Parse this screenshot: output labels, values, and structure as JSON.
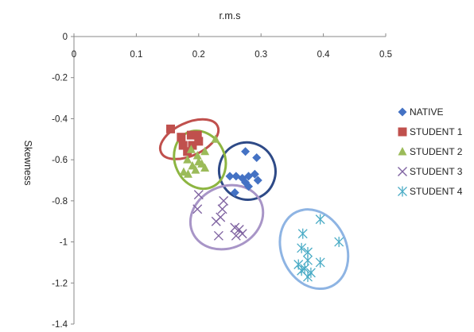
{
  "chart_data": {
    "type": "scatter",
    "title": "",
    "xlabel": "r.m.s",
    "ylabel": "Skewness",
    "xlim": [
      0,
      0.5
    ],
    "ylim": [
      -1.4,
      0
    ],
    "x_ticks": [
      "0",
      "0.1",
      "0.2",
      "0.3",
      "0.4",
      "0.5"
    ],
    "y_ticks": [
      "0",
      "-0.2",
      "-0.4",
      "-0.6",
      "-0.8",
      "-1",
      "-1.2",
      "-1.4"
    ],
    "x_axis_position": "top",
    "grid": false,
    "legend_position": "right",
    "series": [
      {
        "name": "NATIVE",
        "marker": "diamond",
        "color": "#4472C4",
        "points": [
          [
            0.275,
            -0.56
          ],
          [
            0.293,
            -0.59
          ],
          [
            0.25,
            -0.68
          ],
          [
            0.26,
            -0.68
          ],
          [
            0.27,
            -0.69
          ],
          [
            0.28,
            -0.68
          ],
          [
            0.29,
            -0.67
          ],
          [
            0.295,
            -0.7
          ],
          [
            0.275,
            -0.71
          ],
          [
            0.28,
            -0.73
          ],
          [
            0.258,
            -0.76
          ]
        ]
      },
      {
        "name": "STUDENT 1",
        "marker": "square",
        "color": "#C0504D",
        "points": [
          [
            0.155,
            -0.45
          ],
          [
            0.172,
            -0.49
          ],
          [
            0.188,
            -0.48
          ],
          [
            0.198,
            -0.48
          ],
          [
            0.175,
            -0.53
          ],
          [
            0.19,
            -0.53
          ],
          [
            0.182,
            -0.56
          ],
          [
            0.2,
            -0.51
          ]
        ]
      },
      {
        "name": "STUDENT 2",
        "marker": "triangle",
        "color": "#9BBB59",
        "points": [
          [
            0.227,
            -0.5
          ],
          [
            0.188,
            -0.55
          ],
          [
            0.198,
            -0.58
          ],
          [
            0.21,
            -0.56
          ],
          [
            0.182,
            -0.6
          ],
          [
            0.2,
            -0.61
          ],
          [
            0.19,
            -0.63
          ],
          [
            0.205,
            -0.62
          ],
          [
            0.176,
            -0.66
          ],
          [
            0.21,
            -0.64
          ],
          [
            0.183,
            -0.67
          ],
          [
            0.195,
            -0.65
          ]
        ]
      },
      {
        "name": "STUDENT 3",
        "marker": "x",
        "color": "#8064A2",
        "points": [
          [
            0.2,
            -0.77
          ],
          [
            0.24,
            -0.8
          ],
          [
            0.198,
            -0.84
          ],
          [
            0.238,
            -0.84
          ],
          [
            0.235,
            -0.88
          ],
          [
            0.228,
            -0.9
          ],
          [
            0.258,
            -0.93
          ],
          [
            0.265,
            -0.94
          ],
          [
            0.27,
            -0.96
          ],
          [
            0.232,
            -0.97
          ],
          [
            0.26,
            -0.97
          ]
        ]
      },
      {
        "name": "STUDENT 4",
        "marker": "star",
        "color": "#4BACC6",
        "points": [
          [
            0.395,
            -0.89
          ],
          [
            0.367,
            -0.96
          ],
          [
            0.425,
            -1.0
          ],
          [
            0.365,
            -1.03
          ],
          [
            0.375,
            -1.05
          ],
          [
            0.375,
            -1.09
          ],
          [
            0.36,
            -1.11
          ],
          [
            0.395,
            -1.1
          ],
          [
            0.37,
            -1.13
          ],
          [
            0.38,
            -1.15
          ],
          [
            0.375,
            -1.17
          ],
          [
            0.365,
            -1.14
          ]
        ]
      }
    ],
    "cluster_outlines": [
      {
        "series": "NATIVE",
        "color": "#2E4A87",
        "center": [
          0.278,
          -0.655
        ],
        "radii": [
          0.045,
          0.14
        ]
      },
      {
        "series": "STUDENT 1",
        "color": "#C0504D",
        "center": [
          0.185,
          -0.5
        ],
        "radii": [
          0.05,
          0.08
        ]
      },
      {
        "series": "STUDENT 2",
        "color": "#8DB541",
        "center": [
          0.202,
          -0.6
        ],
        "radii": [
          0.04,
          0.145
        ]
      },
      {
        "series": "STUDENT 3",
        "color": "#A895C7",
        "center": [
          0.245,
          -0.88
        ],
        "radii": [
          0.06,
          0.15
        ]
      },
      {
        "series": "STUDENT 4",
        "color": "#8EB4E3",
        "center": [
          0.385,
          -1.035
        ],
        "radii": [
          0.052,
          0.2
        ]
      }
    ]
  }
}
